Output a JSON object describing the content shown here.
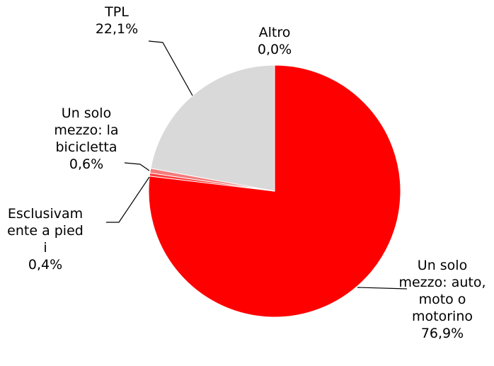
{
  "chart_data": {
    "type": "pie",
    "categories": [
      "Un solo mezzo: auto, moto o motorino",
      "Esclusivamente a piedi",
      "Un solo mezzo: la bicicletta",
      "TPL",
      "Altro"
    ],
    "values": [
      76.9,
      0.4,
      0.6,
      22.1,
      0.0
    ],
    "value_labels": [
      "76,9%",
      "0,4%",
      "0,6%",
      "22,1%",
      "0,0%"
    ],
    "colors": [
      "#ff0000",
      "#ff3b3b",
      "#f47c7c",
      "#d9d9d9",
      "#bfbfbf"
    ]
  }
}
